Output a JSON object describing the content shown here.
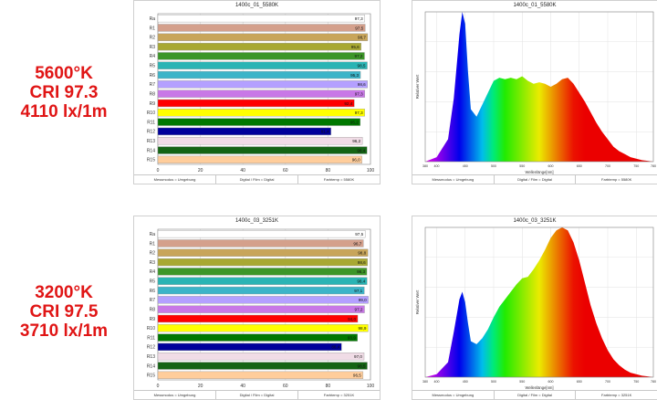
{
  "specs": [
    {
      "cct": "5600°K",
      "cri": "CRI 97.3",
      "lux": "4110 lx/1m"
    },
    {
      "cct": "3200°K",
      "cri": "CRI 97.5",
      "lux": "3710 lx/1m"
    }
  ],
  "cri_charts": [
    {
      "title": "1400c_01_5580K",
      "footer": [
        "Messmodus = Umgebung",
        "Digital / Film = Digital",
        "Farbtemp = 5580K"
      ]
    },
    {
      "title": "1400c_03_3251K",
      "footer": [
        "Messmodus = Umgebung",
        "Digital / Film = Digital",
        "Farbtemp = 3251K"
      ]
    }
  ],
  "spectrum_charts": [
    {
      "title": "1400c_01_5580K",
      "ylabel": "Relativer Wert",
      "xlabel": "Wellenlänge[nm]",
      "footer": [
        "Messmodus = Umgebung",
        "Digital / Film = Digital",
        "Farbtemp = 5580K"
      ]
    },
    {
      "title": "1400c_03_3251K",
      "ylabel": "Relativer Wert",
      "xlabel": "Wellenlänge[nm]",
      "footer": [
        "Messmodus = Umgebung",
        "Digital / Film = Digital",
        "Farbtemp = 3251K"
      ]
    }
  ],
  "chart_data": [
    {
      "type": "bar",
      "title": "1400c_01_5580K",
      "categories": [
        "Ra",
        "R1",
        "R2",
        "R3",
        "R4",
        "R5",
        "R6",
        "R7",
        "R8",
        "R9",
        "R10",
        "R11",
        "R12",
        "R13",
        "R14",
        "R15"
      ],
      "values": [
        97.3,
        97.5,
        98.7,
        95.6,
        97.2,
        98.5,
        95.3,
        98.6,
        97.3,
        92.4,
        97.3,
        95.2,
        81.4,
        96.2,
        98.4,
        96.0
      ],
      "labels": [
        "97,3",
        "97,5",
        "98,7",
        "95,6",
        "97,2",
        "98,5",
        "95,3",
        "98,6",
        "97,3",
        "92,4",
        "97,3",
        "95,2",
        "81,4",
        "96,2",
        "98,4",
        "96,0"
      ],
      "colors": [
        "#ffffff",
        "#d4a08c",
        "#c8a55a",
        "#a8a832",
        "#3c9628",
        "#2ab4b4",
        "#3cb4c8",
        "#b4a0ff",
        "#c878e6",
        "#ff0000",
        "#ffff00",
        "#007800",
        "#00009b",
        "#f0dce6",
        "#146414",
        "#ffcd9b"
      ],
      "xticks": [
        "0",
        "20",
        "40",
        "60",
        "80",
        "100"
      ],
      "xlim": [
        0,
        100
      ]
    },
    {
      "type": "area",
      "title": "1400c_01_5580K",
      "xlabel": "Wellenlänge[nm]",
      "ylabel": "Relativer Wert",
      "xticks": [
        "380",
        "400",
        "450",
        "500",
        "550",
        "600",
        "650",
        "700",
        "750",
        "780"
      ],
      "x": [
        380,
        400,
        420,
        430,
        440,
        445,
        450,
        455,
        460,
        470,
        480,
        490,
        500,
        510,
        520,
        530,
        540,
        550,
        560,
        570,
        580,
        590,
        600,
        610,
        620,
        630,
        640,
        650,
        660,
        670,
        680,
        690,
        700,
        710,
        720,
        730,
        740,
        750,
        760,
        770,
        780
      ],
      "y": [
        0,
        0.03,
        0.15,
        0.42,
        0.85,
        1.0,
        0.92,
        0.6,
        0.35,
        0.3,
        0.38,
        0.46,
        0.54,
        0.56,
        0.55,
        0.56,
        0.55,
        0.57,
        0.54,
        0.52,
        0.53,
        0.52,
        0.5,
        0.52,
        0.55,
        0.56,
        0.52,
        0.46,
        0.4,
        0.33,
        0.26,
        0.2,
        0.15,
        0.1,
        0.07,
        0.05,
        0.03,
        0.02,
        0.01,
        0.005,
        0
      ],
      "xlim": [
        380,
        780
      ],
      "ylim": [
        0,
        1
      ]
    },
    {
      "type": "bar",
      "title": "1400c_03_3251K",
      "categories": [
        "Ra",
        "R1",
        "R2",
        "R3",
        "R4",
        "R5",
        "R6",
        "R7",
        "R8",
        "R9",
        "R10",
        "R11",
        "R12",
        "R13",
        "R14",
        "R15"
      ],
      "values": [
        97.5,
        96.7,
        98.8,
        98.6,
        98.3,
        98.4,
        97.1,
        99.0,
        97.2,
        94.0,
        98.9,
        93.9,
        86.4,
        97.0,
        98.5,
        96.5
      ],
      "labels": [
        "97,5",
        "96,7",
        "98,8",
        "98,6",
        "98,3",
        "98,4",
        "97,1",
        "99,0",
        "97,2",
        "94,0",
        "98,9",
        "93,9",
        "86,4",
        "97,0",
        "98,5",
        "96,5"
      ],
      "colors": [
        "#ffffff",
        "#d4a08c",
        "#c8a55a",
        "#a8a832",
        "#3c9628",
        "#2ab4b4",
        "#3cb4c8",
        "#b4a0ff",
        "#c878e6",
        "#ff0000",
        "#ffff00",
        "#007800",
        "#00009b",
        "#f0dce6",
        "#146414",
        "#ffcd9b"
      ],
      "xticks": [
        "0",
        "20",
        "40",
        "60",
        "80",
        "100"
      ],
      "xlim": [
        0,
        100
      ]
    },
    {
      "type": "area",
      "title": "1400c_03_3251K",
      "xlabel": "Wellenlänge[nm]",
      "ylabel": "Relativer Wert",
      "xticks": [
        "380",
        "400",
        "450",
        "500",
        "550",
        "600",
        "650",
        "700",
        "750",
        "780"
      ],
      "x": [
        380,
        400,
        420,
        430,
        440,
        445,
        450,
        455,
        460,
        470,
        480,
        490,
        500,
        510,
        520,
        530,
        540,
        550,
        560,
        570,
        580,
        590,
        600,
        610,
        620,
        630,
        640,
        650,
        660,
        670,
        680,
        690,
        700,
        710,
        720,
        730,
        740,
        750,
        760,
        770,
        780
      ],
      "y": [
        0,
        0.02,
        0.1,
        0.3,
        0.52,
        0.57,
        0.5,
        0.36,
        0.24,
        0.22,
        0.26,
        0.32,
        0.4,
        0.47,
        0.52,
        0.57,
        0.62,
        0.66,
        0.67,
        0.72,
        0.78,
        0.85,
        0.93,
        0.98,
        1.0,
        0.98,
        0.9,
        0.78,
        0.63,
        0.48,
        0.36,
        0.26,
        0.18,
        0.12,
        0.08,
        0.05,
        0.03,
        0.02,
        0.01,
        0.005,
        0
      ],
      "xlim": [
        380,
        780
      ],
      "ylim": [
        0,
        1
      ]
    }
  ]
}
